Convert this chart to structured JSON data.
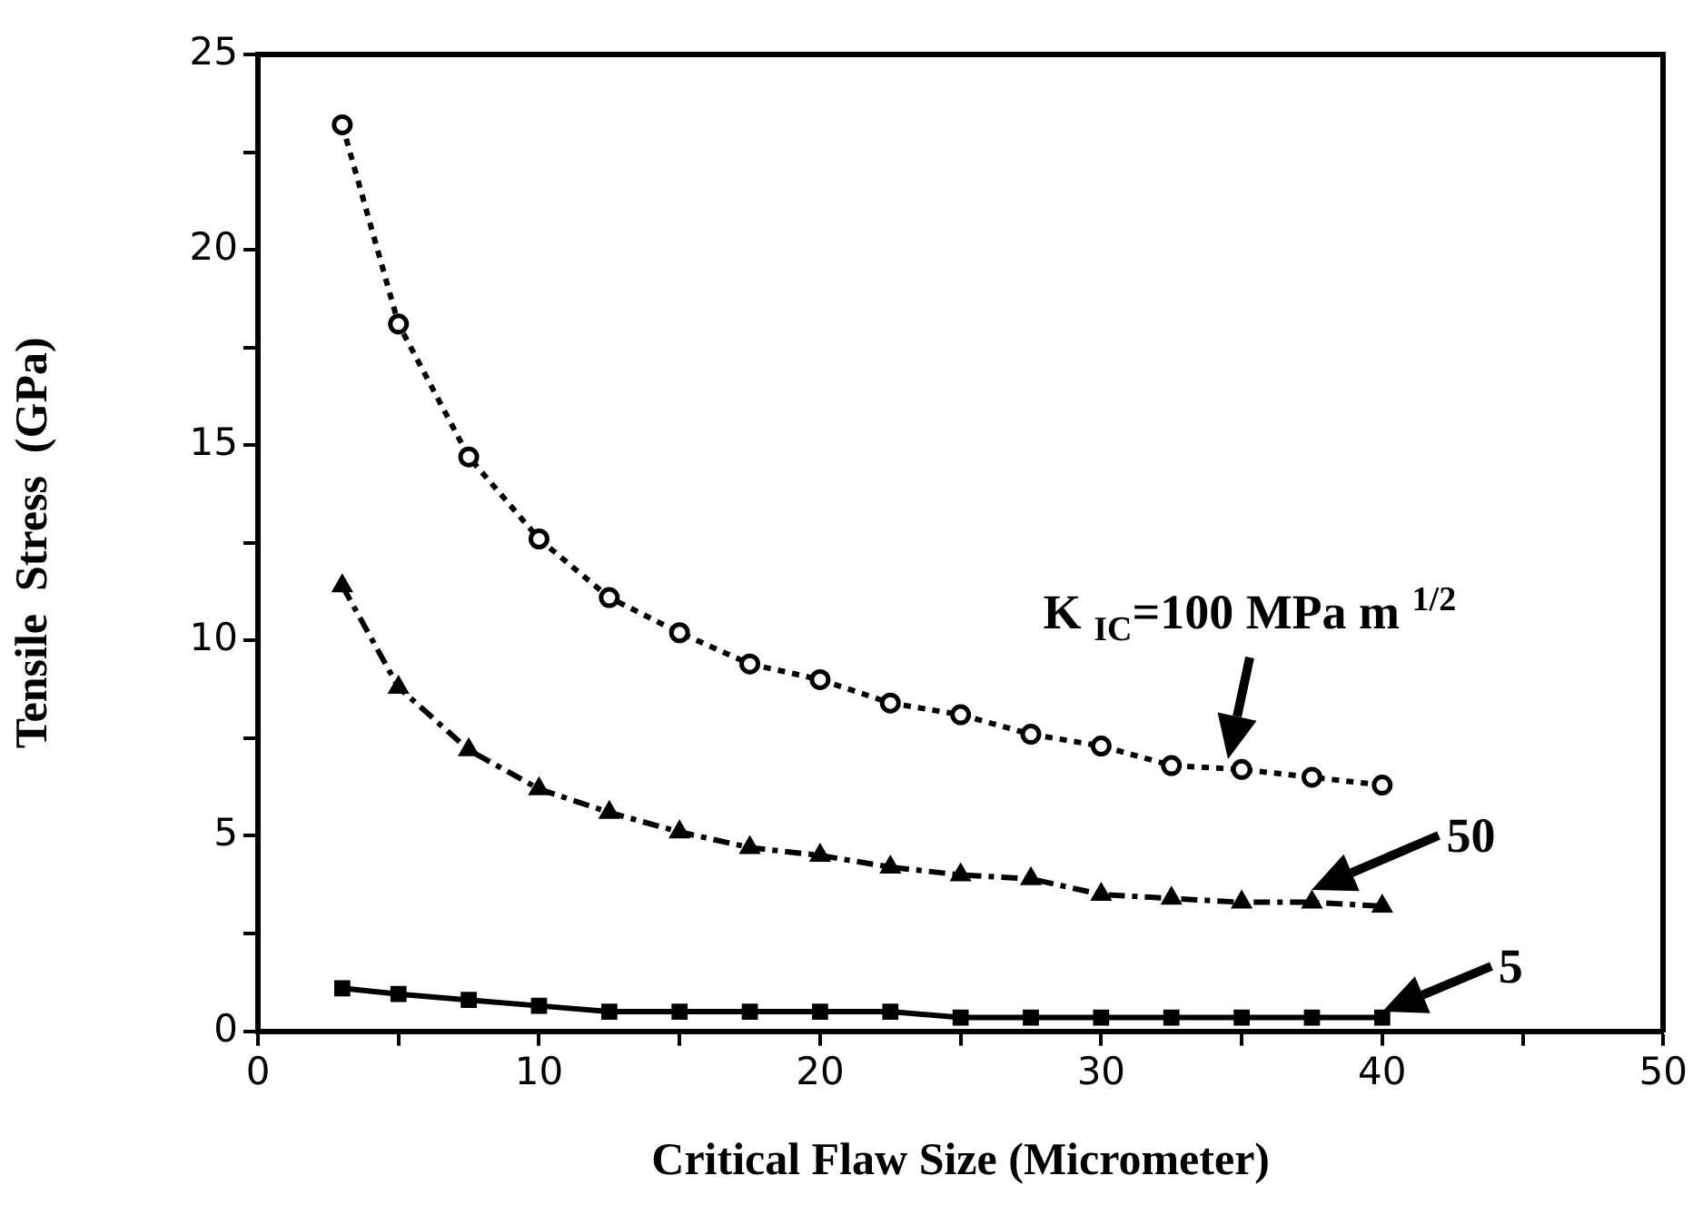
{
  "chart_data": {
    "type": "line",
    "xlabel": "Critical Flaw Size (Micrometer)",
    "ylabel": "Tensile  Stress  (GPa)",
    "x": [
      3,
      5,
      7.5,
      10,
      12.5,
      15,
      17.5,
      20,
      22.5,
      25,
      27.5,
      30,
      32.5,
      35,
      37.5,
      40
    ],
    "series": [
      {
        "color": "#000000",
        "marker": "circle",
        "line_style": "dotted",
        "values": [
          23.2,
          18.1,
          14.7,
          12.6,
          11.1,
          10.2,
          9.4,
          9.0,
          8.4,
          8.1,
          7.6,
          7.3,
          6.8,
          6.7,
          6.5,
          6.3
        ]
      },
      {
        "color": "#000000",
        "marker": "triangle",
        "line_style": "dashed",
        "values": [
          11.4,
          8.8,
          7.2,
          6.2,
          5.6,
          5.1,
          4.7,
          4.5,
          4.2,
          4.0,
          3.9,
          3.5,
          3.4,
          3.3,
          3.3,
          3.2
        ]
      },
      {
        "color": "#000000",
        "marker": "square",
        "line_style": "solid",
        "values": [
          1.1,
          0.95,
          0.8,
          0.65,
          0.5,
          0.5,
          0.5,
          0.5,
          0.5,
          0.35,
          0.35,
          0.35,
          0.35,
          0.35,
          0.35,
          0.35
        ]
      }
    ],
    "xlim": [
      0,
      50
    ],
    "ylim": [
      0,
      25
    ],
    "xticks": [
      0,
      {
        "value": 5,
        "label": null
      },
      10,
      {
        "value": 15,
        "label": null
      },
      20,
      {
        "value": 25,
        "label": null
      },
      30,
      {
        "value": 35,
        "label": null
      },
      40,
      {
        "value": 45,
        "label": null
      },
      50
    ],
    "yticks": [
      0,
      {
        "value": 2.5,
        "label": null
      },
      5,
      {
        "value": 7.5,
        "label": null
      },
      10,
      {
        "value": 12.5,
        "label": null
      },
      15,
      {
        "value": 17.5,
        "label": null
      },
      20,
      {
        "value": 22.5,
        "label": null
      },
      25
    ],
    "grid": false,
    "legend": false,
    "annotations": [
      {
        "text": "K $_{IC}$=100 MPa m $^{1/2}$",
        "x": 34.5,
        "y": 6.8
      },
      {
        "text": "50",
        "x": 37.5,
        "y": 3.6
      },
      {
        "text": "5",
        "x": 40,
        "y": 0.5
      }
    ]
  }
}
